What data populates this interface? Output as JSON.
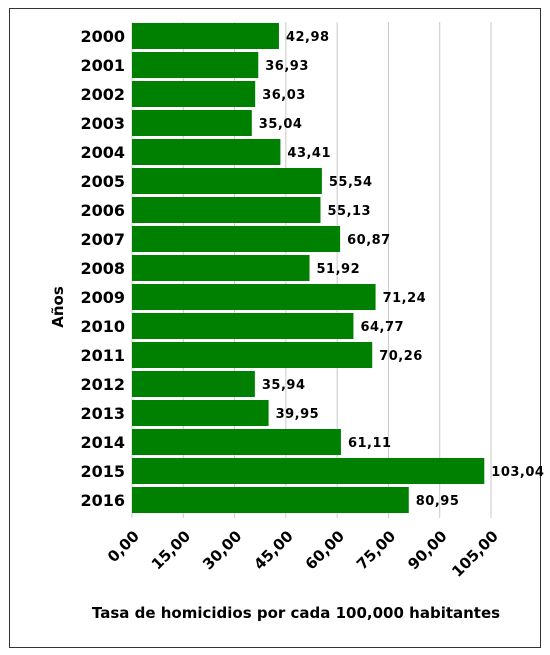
{
  "chart_data": {
    "type": "bar",
    "orientation": "horizontal",
    "categories": [
      "2000",
      "2001",
      "2002",
      "2003",
      "2004",
      "2005",
      "2006",
      "2007",
      "2008",
      "2009",
      "2010",
      "2011",
      "2012",
      "2013",
      "2014",
      "2015",
      "2016"
    ],
    "values": [
      42.98,
      36.93,
      36.03,
      35.04,
      43.41,
      55.54,
      55.13,
      60.87,
      51.92,
      71.24,
      64.77,
      70.26,
      35.94,
      39.95,
      61.11,
      103.04,
      80.95
    ],
    "value_labels": [
      "42,98",
      "36,93",
      "36,03",
      "35,04",
      "43,41",
      "55,54",
      "55,13",
      "60,87",
      "51,92",
      "71,24",
      "64,77",
      "70,26",
      "35,94",
      "39,95",
      "61,11",
      "103,04",
      "80,95"
    ],
    "xticks": [
      0,
      15,
      30,
      45,
      60,
      75,
      90,
      105
    ],
    "xtick_labels": [
      "0,00",
      "15,00",
      "30,00",
      "45,00",
      "60,00",
      "75,00",
      "90,00",
      "105,00"
    ],
    "xlim": [
      0,
      105
    ],
    "xlabel": "Tasa de homicidios por cada 100,000 habitantes",
    "ylabel": "Años",
    "bar_color": "#008000",
    "grid": true,
    "legend": false
  }
}
